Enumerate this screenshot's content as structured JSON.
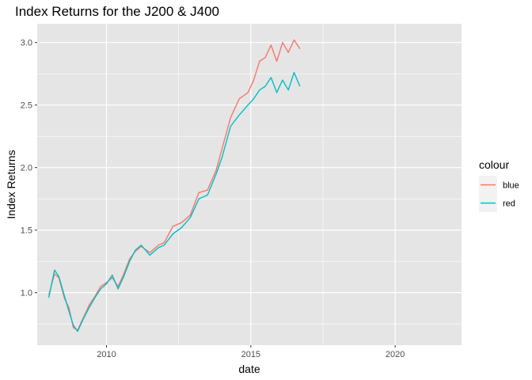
{
  "chart_data": {
    "type": "line",
    "title": "Index Returns for the J200 & J400",
    "xlabel": "date",
    "ylabel": "Index Returns",
    "xlim": [
      2007.6,
      2022.3
    ],
    "ylim": [
      0.58,
      3.15
    ],
    "x_ticks": [
      {
        "value": 2010,
        "label": "2010"
      },
      {
        "value": 2015,
        "label": "2015"
      },
      {
        "value": 2020,
        "label": "2020"
      }
    ],
    "y_ticks": [
      {
        "value": 1.0,
        "label": "1.0"
      },
      {
        "value": 1.5,
        "label": "1.5"
      },
      {
        "value": 2.0,
        "label": "2.0"
      },
      {
        "value": 2.5,
        "label": "2.5"
      },
      {
        "value": 3.0,
        "label": "3.0"
      }
    ],
    "legend": {
      "title": "colour",
      "position": "right"
    },
    "grid": true,
    "colors": {
      "panel": "#e5e5e5",
      "grid": "#ffffff"
    },
    "series": [
      {
        "name": "blue",
        "color": "#F8766D",
        "x": [
          2008.0,
          2008.2,
          2008.35,
          2008.55,
          2008.7,
          2008.85,
          2009.0,
          2009.2,
          2009.4,
          2009.6,
          2009.8,
          2010.0,
          2010.2,
          2010.4,
          2010.6,
          2010.8,
          2011.0,
          2011.2,
          2011.5,
          2011.8,
          2012.0,
          2012.3,
          2012.6,
          2012.9,
          2013.2,
          2013.5,
          2013.8,
          2014.0,
          2014.3,
          2014.6,
          2014.9,
          2015.1,
          2015.3,
          2015.5,
          2015.7,
          2015.9,
          2016.1,
          2016.3,
          2016.5,
          2016.7
        ],
        "y": [
          0.98,
          1.15,
          1.12,
          0.95,
          0.88,
          0.72,
          0.7,
          0.8,
          0.9,
          0.97,
          1.05,
          1.08,
          1.12,
          1.05,
          1.15,
          1.27,
          1.33,
          1.37,
          1.32,
          1.38,
          1.4,
          1.53,
          1.56,
          1.62,
          1.8,
          1.82,
          1.98,
          2.15,
          2.4,
          2.55,
          2.6,
          2.7,
          2.85,
          2.88,
          2.98,
          2.85,
          3.0,
          2.92,
          3.02,
          2.95
        ]
      },
      {
        "name": "red",
        "color": "#00BFC4",
        "x": [
          2008.0,
          2008.2,
          2008.35,
          2008.55,
          2008.7,
          2008.85,
          2009.0,
          2009.2,
          2009.4,
          2009.6,
          2009.8,
          2010.0,
          2010.2,
          2010.4,
          2010.6,
          2010.8,
          2011.0,
          2011.2,
          2011.5,
          2011.8,
          2012.0,
          2012.3,
          2012.6,
          2012.9,
          2013.2,
          2013.5,
          2013.8,
          2014.0,
          2014.3,
          2014.6,
          2014.9,
          2015.1,
          2015.3,
          2015.5,
          2015.7,
          2015.9,
          2016.1,
          2016.3,
          2016.5,
          2016.7
        ],
        "y": [
          0.96,
          1.18,
          1.13,
          0.97,
          0.85,
          0.74,
          0.69,
          0.79,
          0.88,
          0.96,
          1.03,
          1.07,
          1.14,
          1.03,
          1.13,
          1.25,
          1.34,
          1.38,
          1.3,
          1.36,
          1.38,
          1.47,
          1.52,
          1.6,
          1.75,
          1.78,
          1.95,
          2.08,
          2.33,
          2.42,
          2.5,
          2.55,
          2.62,
          2.65,
          2.72,
          2.6,
          2.7,
          2.62,
          2.76,
          2.65
        ]
      }
    ]
  }
}
